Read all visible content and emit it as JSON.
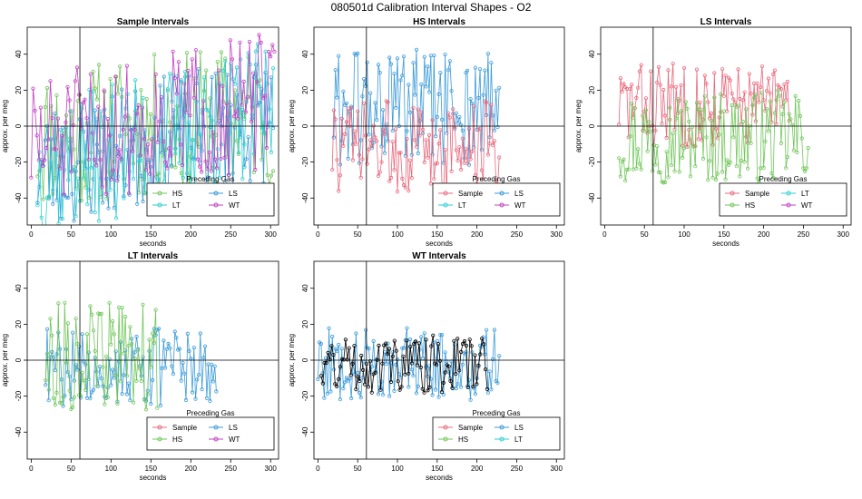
{
  "page_title": "080501d   Calibration Interval Shapes - O2",
  "legend_title": "Preceding Gas",
  "colors": {
    "Sample": "#e8697d",
    "HS": "#71c65a",
    "LS": "#3a9ad9",
    "LT": "#2bcfd1",
    "WT": "#c43fc4",
    "black": "#000000"
  },
  "chart_data": [
    {
      "id": "sample",
      "type": "scatter",
      "title": "Sample Intervals",
      "xlabel": "seconds",
      "ylabel": "approx. per meg",
      "xlim": [
        -5,
        310
      ],
      "ylim": [
        -55,
        55
      ],
      "xticks": [
        0,
        50,
        100,
        150,
        200,
        250,
        300
      ],
      "yticks": [
        -40,
        -20,
        0,
        20,
        40
      ],
      "vline": 61,
      "legend": {
        "placement": "bottom-right",
        "entries": [
          "HS",
          "LS",
          "LT",
          "WT"
        ]
      },
      "series": [
        {
          "name": "HS",
          "x_start": 8,
          "x_end": 305,
          "step": 2.4,
          "center": 0,
          "amp": 40,
          "trend": 0.05,
          "seed": 11
        },
        {
          "name": "LS",
          "x_start": 8,
          "x_end": 305,
          "step": 2.4,
          "center": -10,
          "amp": 36,
          "trend": 0.1,
          "seed": 23
        },
        {
          "name": "LT",
          "x_start": 8,
          "x_end": 305,
          "step": 2.4,
          "center": -8,
          "amp": 38,
          "trend": 0.12,
          "seed": 37
        },
        {
          "name": "WT",
          "x_start": 0,
          "x_end": 305,
          "step": 2.4,
          "center": 2,
          "amp": 38,
          "trend": 0.08,
          "seed": 51
        }
      ]
    },
    {
      "id": "hs",
      "type": "scatter",
      "title": "HS Intervals",
      "xlabel": "seconds",
      "ylabel": "approx. per meg",
      "xlim": [
        -5,
        310
      ],
      "ylim": [
        -55,
        55
      ],
      "xticks": [
        0,
        50,
        100,
        150,
        200,
        250,
        300
      ],
      "yticks": [
        -40,
        -20,
        0,
        20,
        40
      ],
      "vline": 61,
      "legend": {
        "placement": "bottom-right",
        "entries": [
          "Sample",
          "LS",
          "LT",
          "WT"
        ]
      },
      "series": [
        {
          "name": "LS",
          "x_start": 20,
          "x_end": 228,
          "step": 2,
          "center": 10,
          "amp": 34,
          "trend": 0,
          "seed": 61
        },
        {
          "name": "Sample",
          "x_start": 18,
          "x_end": 228,
          "step": 2,
          "center": -12,
          "amp": 26,
          "trend": 0,
          "seed": 73
        }
      ]
    },
    {
      "id": "ls",
      "type": "scatter",
      "title": "LS Intervals",
      "xlabel": "seconds",
      "ylabel": "approx. per meg",
      "xlim": [
        -5,
        310
      ],
      "ylim": [
        -55,
        55
      ],
      "xticks": [
        0,
        50,
        100,
        150,
        200,
        250,
        300
      ],
      "yticks": [
        -40,
        -20,
        0,
        20,
        40
      ],
      "vline": 61,
      "legend": {
        "placement": "bottom-right",
        "entries": [
          "Sample",
          "LT",
          "HS",
          "WT"
        ]
      },
      "series": [
        {
          "name": "Sample",
          "x_start": 18,
          "x_end": 232,
          "step": 2,
          "center": 12,
          "amp": 24,
          "trend": 0,
          "seed": 83
        },
        {
          "name": "HS",
          "x_start": 18,
          "x_end": 256,
          "step": 2,
          "center": -6,
          "amp": 26,
          "trend": 0,
          "seed": 97
        }
      ]
    },
    {
      "id": "lt",
      "type": "scatter",
      "title": "LT Intervals",
      "xlabel": "seconds",
      "ylabel": "approx. per meg",
      "xlim": [
        -5,
        310
      ],
      "ylim": [
        -55,
        55
      ],
      "xticks": [
        0,
        50,
        100,
        150,
        200,
        250,
        300
      ],
      "yticks": [
        -40,
        -20,
        0,
        20,
        40
      ],
      "vline": 61,
      "legend": {
        "placement": "bottom-right",
        "entries": [
          "Sample",
          "LS",
          "HS",
          "WT"
        ]
      },
      "series": [
        {
          "name": "LS",
          "x_start": 18,
          "x_end": 232,
          "step": 2,
          "center": -4,
          "amp": 22,
          "trend": 0,
          "seed": 107
        },
        {
          "name": "HS",
          "x_start": 18,
          "x_end": 158,
          "step": 2,
          "center": 2,
          "amp": 30,
          "trend": 0,
          "seed": 113
        }
      ]
    },
    {
      "id": "wt",
      "type": "scatter",
      "title": "WT Intervals",
      "xlabel": "seconds",
      "ylabel": "approx. per meg",
      "xlim": [
        -5,
        310
      ],
      "ylim": [
        -55,
        55
      ],
      "xticks": [
        0,
        50,
        100,
        150,
        200,
        250,
        300
      ],
      "yticks": [
        -40,
        -20,
        0,
        20,
        40
      ],
      "vline": 61,
      "legend": {
        "placement": "bottom-right",
        "entries": [
          "Sample",
          "LS",
          "HS",
          "LT"
        ]
      },
      "series": [
        {
          "name": "LS",
          "x_start": 0,
          "x_end": 228,
          "step": 2,
          "center": -2,
          "amp": 20,
          "trend": 0,
          "seed": 127
        },
        {
          "name": "black",
          "x_start": 4,
          "x_end": 215,
          "step": 2.2,
          "center": -2,
          "amp": 16,
          "trend": 0,
          "seed": 131
        }
      ]
    }
  ]
}
